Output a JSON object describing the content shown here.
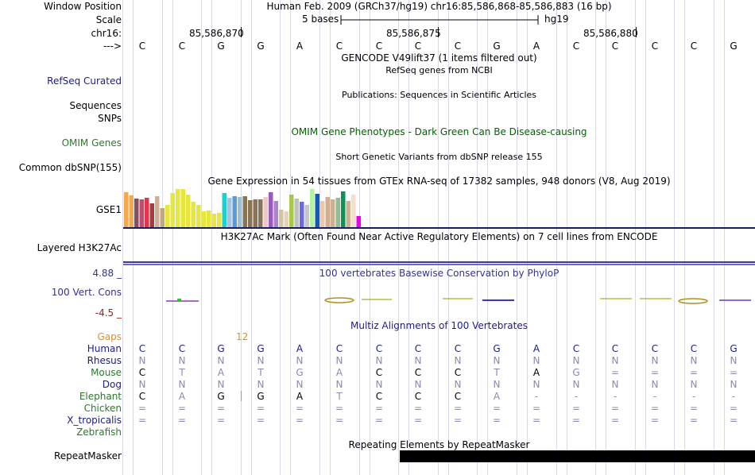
{
  "labels": {
    "window_position": "Window Position",
    "scale": "Scale",
    "chrom": "chr16:",
    "strand": "--->",
    "refseq": "RefSeq Curated",
    "sequences": "Sequences",
    "snps": "SNPs",
    "omim": "OMIM Genes",
    "dbsnp": "Common dbSNP(155)",
    "gse1": "GSE1",
    "h3k27ac": "Layered H3K27Ac",
    "cons_max": "4.88 _",
    "cons": "100 Vert. Cons",
    "cons_min": "-4.5 _",
    "gaps": "Gaps",
    "human": "Human",
    "rhesus": "Rhesus",
    "mouse": "Mouse",
    "dog": "Dog",
    "elephant": "Elephant",
    "chicken": "Chicken",
    "x_tropicalis": "X_tropicalis",
    "zebrafish": "Zebrafish",
    "repeatmasker": "RepeatMasker"
  },
  "header": {
    "position": "Human Feb. 2009 (GRCh37/hg19)   chr16:85,586,868-85,586,883 (16 bp)",
    "scale_text": "5 bases",
    "assembly": "hg19",
    "coords": [
      "85,586,870",
      "85,586,875",
      "85,586,880"
    ]
  },
  "tracks": {
    "gencode": "GENCODE V49lift37 (1 items filtered out)",
    "refseq": "RefSeq genes from NCBI",
    "publications": "Publications: Sequences in Scientific Articles",
    "omim": "OMIM Gene Phenotypes - Dark Green Can Be Disease-causing",
    "dbsnp": "Short Genetic Variants from dbSNP release 155",
    "gtex": "Gene Expression in 54 tissues from GTEx RNA-seq of 17382 samples, 948 donors (V8, Aug 2019)",
    "h3k27ac": "H3K27Ac Mark (Often Found Near Active Regulatory Elements) on 7 cell lines from ENCODE",
    "phylop": "100 vertebrates Basewise Conservation by PhyloP",
    "multiz": "Multiz Alignments of 100 Vertebrates",
    "repeatmasker": "Repeating Elements by RepeatMasker",
    "gap_count": "12"
  },
  "sequence": [
    "C",
    "C",
    "G",
    "G",
    "A",
    "C",
    "C",
    "C",
    "C",
    "G",
    "A",
    "C",
    "C",
    "C",
    "C",
    "G"
  ],
  "alignment": {
    "human": [
      "C",
      "C",
      "G",
      "G",
      "A",
      "C",
      "C",
      "C",
      "C",
      "G",
      "A",
      "C",
      "C",
      "C",
      "C",
      "G"
    ],
    "rhesus": [
      "N",
      "N",
      "N",
      "N",
      "N",
      "N",
      "N",
      "N",
      "N",
      "N",
      "N",
      "N",
      "N",
      "N",
      "N",
      "N"
    ],
    "mouse": [
      "C",
      "T",
      "A",
      "T",
      "G",
      "A",
      "C",
      "C",
      "C",
      "T",
      "A",
      "G",
      "=",
      "=",
      "=",
      "="
    ],
    "dog": [
      "N",
      "N",
      "N",
      "N",
      "N",
      "N",
      "N",
      "N",
      "N",
      "N",
      "N",
      "N",
      "N",
      "N",
      "N",
      "N"
    ],
    "elephant": [
      "C",
      "A",
      "G",
      "G",
      "A",
      "T",
      "C",
      "C",
      "C",
      "A",
      "-",
      "-",
      "-",
      "-",
      "-",
      "-"
    ],
    "chicken": [
      "=",
      "=",
      "=",
      "=",
      "=",
      "=",
      "=",
      "=",
      "=",
      "=",
      "=",
      "=",
      "=",
      "=",
      "=",
      "="
    ],
    "x_tropicalis": [
      "=",
      "=",
      "=",
      "=",
      "=",
      "=",
      "=",
      "=",
      "=",
      "=",
      "=",
      "=",
      "=",
      "=",
      "=",
      "="
    ],
    "zebrafish": [
      "",
      "",
      "",
      "",
      "",
      "",
      "",
      "",
      "",
      "",
      "",
      "",
      "",
      "",
      "",
      ""
    ]
  },
  "gtex_bars": {
    "values": [
      44,
      40,
      36,
      35,
      37,
      30,
      39,
      24,
      28,
      43,
      48,
      48,
      41,
      32,
      28,
      20,
      21,
      17,
      18,
      43,
      37,
      39,
      38,
      39,
      34,
      35,
      35,
      38,
      44,
      33,
      22,
      20,
      41,
      36,
      32,
      28,
      48,
      42,
      33,
      38,
      35,
      37,
      45,
      33,
      41,
      14
    ],
    "colors": [
      "#f6a84d",
      "#f6a84d",
      "#8e4d5c",
      "#c04d6d",
      "#e4354b",
      "#a73a3d",
      "#cfb093",
      "#c2a786",
      "#e6e63c",
      "#e6e63c",
      "#e6e63c",
      "#e6e63c",
      "#e6e63c",
      "#e6e63c",
      "#e6e63c",
      "#e6e63c",
      "#e6e63c",
      "#e6e63c",
      "#e6e63c",
      "#1dd1d1",
      "#a8c4dc",
      "#5b9bd5",
      "#99c0d8",
      "#8b7355",
      "#8b7355",
      "#8b7355",
      "#8b7355",
      "#eec7c7",
      "#9b5bbd",
      "#b07fd4",
      "#d0c7a0",
      "#e8d0c0",
      "#a8c84a",
      "#c0c0c0",
      "#6a6ae6",
      "#c6c6c6",
      "#b8f0a0",
      "#0f5bb8",
      "#eec7a7",
      "#cfb093",
      "#cfb093",
      "#8fbf8f",
      "#0a9455",
      "#cfb093",
      "#f5e0d0",
      "#ee00ee"
    ]
  },
  "colors": {
    "label_blue": "#1b1b8a",
    "label_green": "#2c7a2c",
    "omim_green": "#006400",
    "cons_blue": "#333399",
    "gaps_orange": "#e09020",
    "cons_max_red": "#992222"
  }
}
